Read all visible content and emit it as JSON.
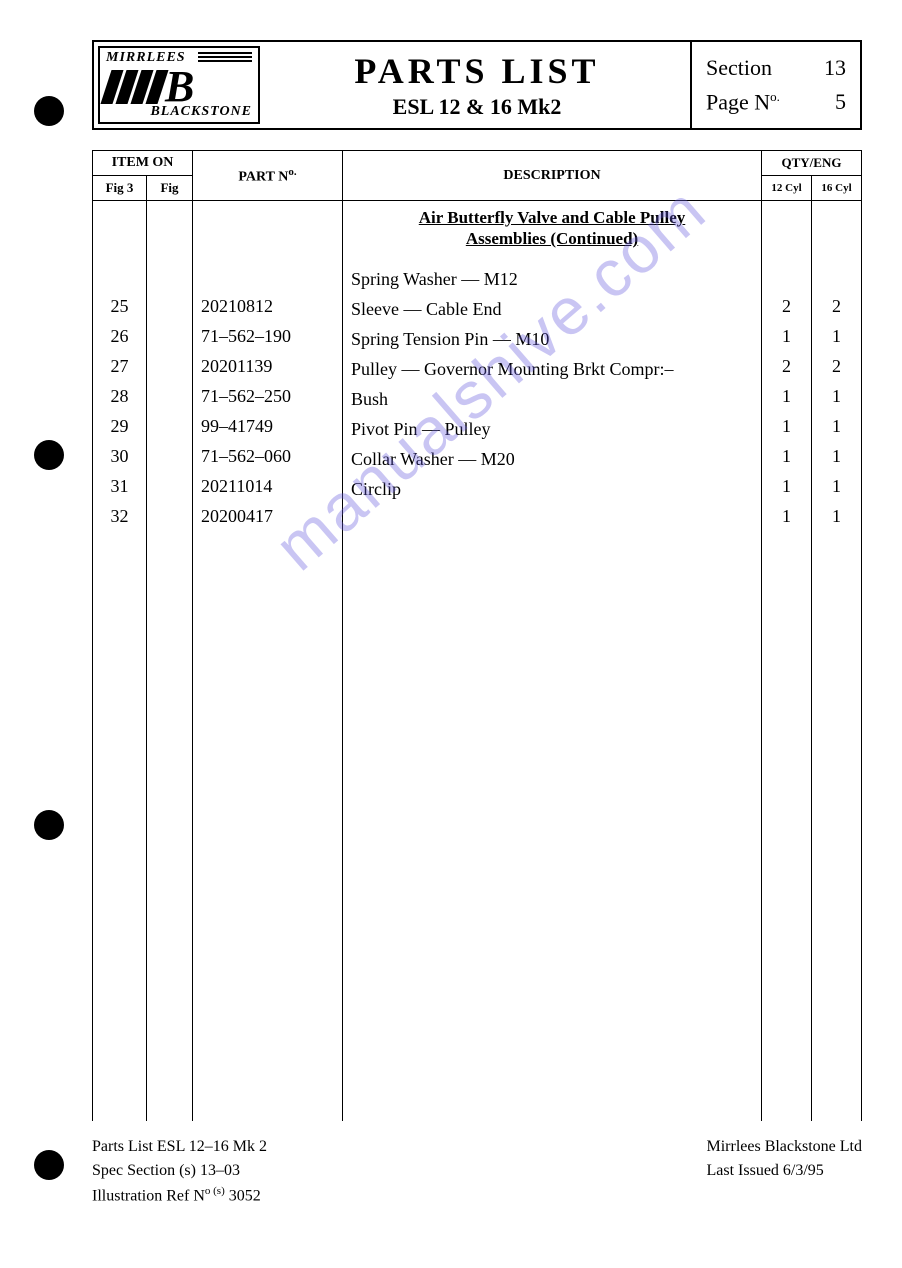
{
  "header": {
    "brand_top": "MIRRLEES",
    "brand_bottom": "BLACKSTONE",
    "title": "PARTS  LIST",
    "subtitle": "ESL 12 & 16 Mk2",
    "section_label": "Section",
    "section_num": "13",
    "page_label": "Page N",
    "page_label_sup": "o.",
    "page_num": "5"
  },
  "table": {
    "headers": {
      "item_on": "ITEM ON",
      "fig3": "Fig 3",
      "fig": "Fig",
      "part_no_pre": "PART N",
      "part_no_sup": "o.",
      "description": "DESCRIPTION",
      "qty_eng": "QTY/ENG",
      "cyl12": "12 Cyl",
      "cyl16": "16 Cyl"
    },
    "section_heading_l1": "Air Butterfly Valve and Cable Pulley",
    "section_heading_l2": "Assemblies (Continued)",
    "rows": [
      {
        "fig3": "25",
        "fig": "",
        "part": "20210812",
        "desc": "Spring Washer — M12",
        "q12": "2",
        "q16": "2"
      },
      {
        "fig3": "26",
        "fig": "",
        "part": "71–562–190",
        "desc": "Sleeve — Cable End",
        "q12": "1",
        "q16": "1"
      },
      {
        "fig3": "27",
        "fig": "",
        "part": "20201139",
        "desc": "Spring Tension Pin — M10",
        "q12": "2",
        "q16": "2"
      },
      {
        "fig3": "28",
        "fig": "",
        "part": "71–562–250",
        "desc": "Pulley — Governor Mounting Brkt Compr:–",
        "q12": "1",
        "q16": "1"
      },
      {
        "fig3": "29",
        "fig": "",
        "part": "99–41749",
        "desc": "Bush",
        "q12": "1",
        "q16": "1"
      },
      {
        "fig3": "30",
        "fig": "",
        "part": "71–562–060",
        "desc": "Pivot Pin — Pulley",
        "q12": "1",
        "q16": "1"
      },
      {
        "fig3": "31",
        "fig": "",
        "part": "20211014",
        "desc": "Collar Washer — M20",
        "q12": "1",
        "q16": "1"
      },
      {
        "fig3": "32",
        "fig": "",
        "part": "20200417",
        "desc": "Circlip",
        "q12": "1",
        "q16": "1"
      }
    ]
  },
  "footer": {
    "left1_a": "Parts List   ESL 12–16 Mk 2",
    "left2_a": "Spec Section (s)   13–03",
    "left3_a": "Illustration Ref N",
    "left3_sup": "o (s)",
    "left3_b": " 3052",
    "right1": "Mirrlees Blackstone Ltd",
    "right2": "Last Issued   6/3/95"
  },
  "watermark": "manualshive.com",
  "colors": {
    "text": "#000000",
    "background": "#ffffff",
    "watermark": "rgba(100,90,220,0.35)"
  }
}
